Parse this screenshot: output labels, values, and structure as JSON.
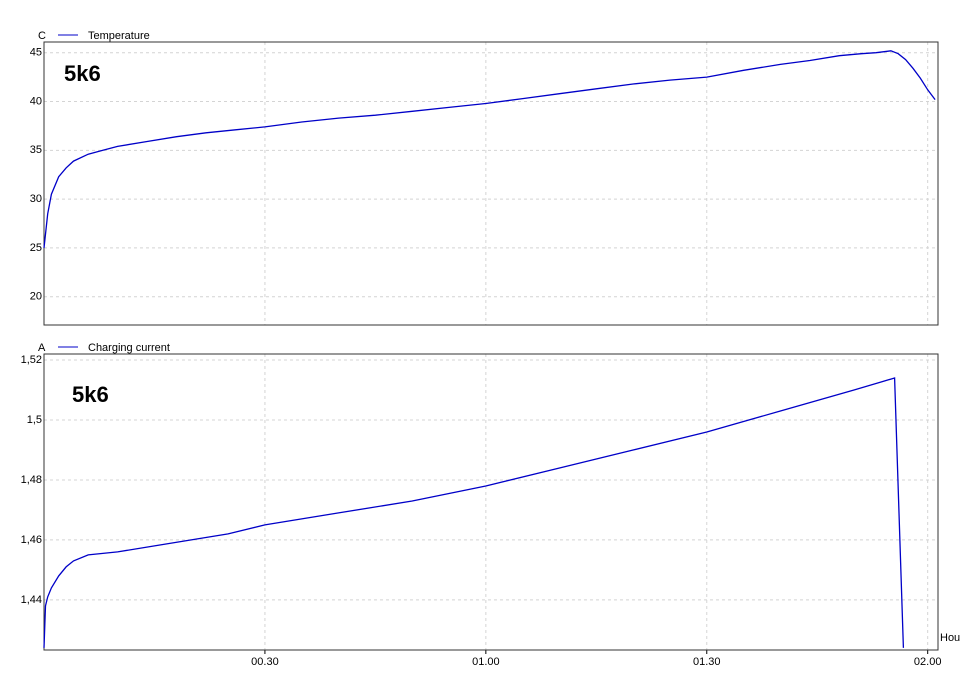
{
  "chart_data": [
    {
      "type": "line",
      "y_label": "C",
      "annotation": "5k6",
      "x": [
        0,
        0.5,
        1,
        2,
        3,
        4,
        6,
        8,
        10,
        14,
        18,
        22,
        26,
        30,
        35,
        40,
        45,
        50,
        55,
        60,
        65,
        70,
        75,
        80,
        85,
        90,
        95,
        100,
        104,
        108,
        111,
        113,
        115,
        116,
        117,
        118,
        119,
        120,
        121
      ],
      "series": [
        {
          "name": "Temperature",
          "color": "#0000c8",
          "values": [
            25,
            28.5,
            30.5,
            32.3,
            33.2,
            33.9,
            34.6,
            35.0,
            35.4,
            35.9,
            36.4,
            36.8,
            37.1,
            37.4,
            37.9,
            38.3,
            38.6,
            39.0,
            39.4,
            39.8,
            40.3,
            40.8,
            41.3,
            41.8,
            42.2,
            42.5,
            43.2,
            43.8,
            44.2,
            44.7,
            44.9,
            45.0,
            45.2,
            44.9,
            44.3,
            43.4,
            42.4,
            41.2,
            40.2
          ]
        }
      ],
      "xlim": [
        0,
        121.4
      ],
      "xticks": [
        30,
        60,
        90,
        120
      ],
      "ylim": [
        17.1,
        46.1
      ],
      "yticks": [
        20,
        25,
        30,
        35,
        40,
        45
      ],
      "grid": true
    },
    {
      "type": "line",
      "y_label": "A",
      "annotation": "5k6",
      "x_label": "Hou",
      "x": [
        0,
        0.2,
        0.5,
        1,
        2,
        3,
        4,
        6,
        8,
        10,
        15,
        20,
        25,
        30,
        40,
        50,
        60,
        70,
        80,
        90,
        100,
        110,
        115.5,
        116.7
      ],
      "series": [
        {
          "name": "Charging current",
          "color": "#0000c8",
          "values": [
            1.424,
            1.438,
            1.441,
            1.444,
            1.448,
            1.451,
            1.453,
            1.455,
            1.4555,
            1.456,
            1.458,
            1.46,
            1.462,
            1.465,
            1.469,
            1.473,
            1.478,
            1.484,
            1.49,
            1.496,
            1.503,
            1.51,
            1.514,
            1.424
          ]
        }
      ],
      "xlim": [
        0,
        121.4
      ],
      "xticks": [
        {
          "value": 30,
          "label": "00.30"
        },
        {
          "value": 60,
          "label": "01.00"
        },
        {
          "value": 90,
          "label": "01.30"
        },
        {
          "value": 120,
          "label": "02.00"
        }
      ],
      "ylim": [
        1.4233,
        1.522
      ],
      "yticks": [
        {
          "value": 1.44,
          "label": "1,44"
        },
        {
          "value": 1.46,
          "label": "1,46"
        },
        {
          "value": 1.48,
          "label": "1,48"
        },
        {
          "value": 1.5,
          "label": "1,5"
        },
        {
          "value": 1.52,
          "label": "1,52"
        }
      ],
      "grid": true
    }
  ]
}
